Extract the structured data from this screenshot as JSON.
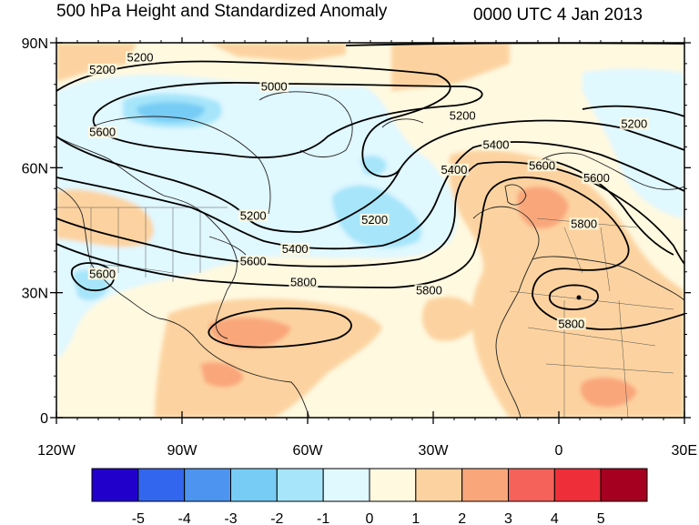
{
  "title": "500 hPa Height and Standardized Anomaly",
  "valid_time": "0000 UTC 4 Jan 2013",
  "axes": {
    "lat_ticks": [
      {
        "value": 90,
        "label": "90N"
      },
      {
        "value": 60,
        "label": "60N"
      },
      {
        "value": 30,
        "label": "30N"
      },
      {
        "value": 0,
        "label": "0"
      }
    ],
    "lon_ticks": [
      {
        "value": -120,
        "label": "120W"
      },
      {
        "value": -90,
        "label": "90W"
      },
      {
        "value": -60,
        "label": "60W"
      },
      {
        "value": -30,
        "label": "30W"
      },
      {
        "value": 0,
        "label": "0"
      },
      {
        "value": 30,
        "label": "30E"
      }
    ],
    "lon_range": [
      -120,
      30
    ],
    "lat_range": [
      0,
      90
    ]
  },
  "contour_labels": [
    {
      "text": "5200",
      "lon": -109,
      "lat": 83
    },
    {
      "text": "5200",
      "lon": -100,
      "lat": 86
    },
    {
      "text": "5000",
      "lon": -68,
      "lat": 79
    },
    {
      "text": "5600",
      "lon": -109,
      "lat": 68
    },
    {
      "text": "5200",
      "lon": -23,
      "lat": 72
    },
    {
      "text": "5200",
      "lon": 18,
      "lat": 70
    },
    {
      "text": "5400",
      "lon": -15,
      "lat": 65
    },
    {
      "text": "5400",
      "lon": -25,
      "lat": 59
    },
    {
      "text": "5600",
      "lon": -4,
      "lat": 60
    },
    {
      "text": "5600",
      "lon": 9,
      "lat": 57
    },
    {
      "text": "5800",
      "lon": 6,
      "lat": 46
    },
    {
      "text": "5200",
      "lon": -73,
      "lat": 48
    },
    {
      "text": "5200",
      "lon": -44,
      "lat": 47
    },
    {
      "text": "5400",
      "lon": -63,
      "lat": 40
    },
    {
      "text": "5600",
      "lon": -73,
      "lat": 37
    },
    {
      "text": "5800",
      "lon": -61,
      "lat": 32
    },
    {
      "text": "5800",
      "lon": -31,
      "lat": 30
    },
    {
      "text": "5800",
      "lon": 3,
      "lat": 22
    },
    {
      "text": "5600",
      "lon": -109,
      "lat": 34
    }
  ],
  "colorbar": {
    "colors": [
      "#2200cc",
      "#3366ee",
      "#4d94f0",
      "#77ccf5",
      "#a6e5fa",
      "#e0f8ff",
      "#fff9e0",
      "#fcd3a0",
      "#f9a67a",
      "#f4625a",
      "#ee2f3a",
      "#a60021"
    ],
    "labels": [
      "-5",
      "-4",
      "-3",
      "-2",
      "-1",
      "0",
      "1",
      "2",
      "3",
      "4",
      "5"
    ]
  }
}
